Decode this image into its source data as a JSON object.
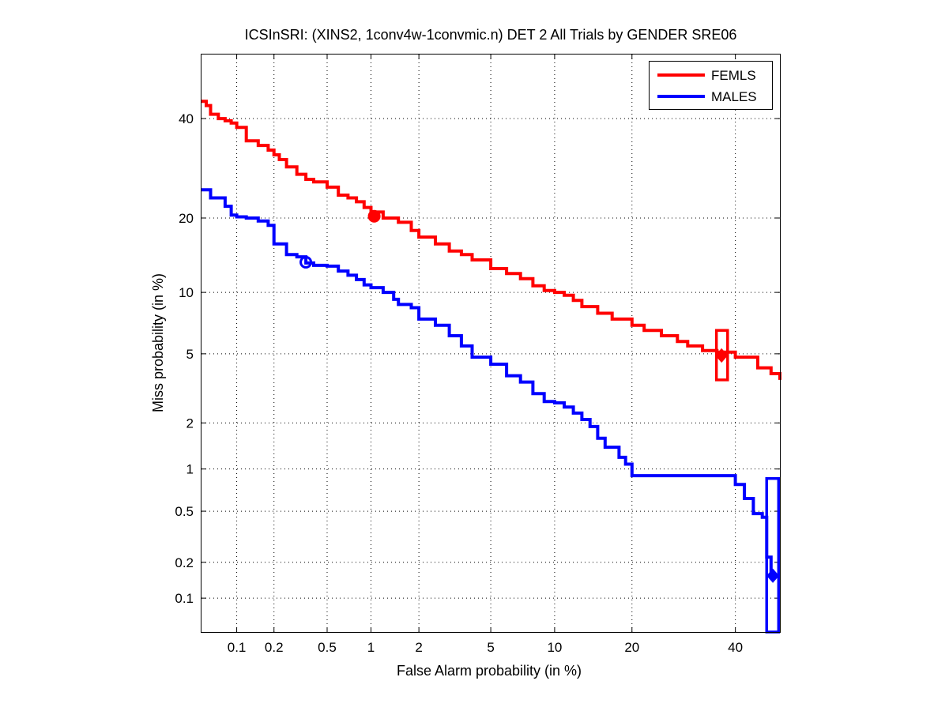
{
  "chart_data": {
    "type": "line",
    "title": "ICSInSRI: (XINS2, 1conv4w-1convmic.n) DET 2 All Trials by GENDER SRE06",
    "xlabel": "False Alarm probability (in %)",
    "ylabel": "Miss probability (in %)",
    "x_scale": "normal-deviate (probit)",
    "y_scale": "normal-deviate (probit)",
    "xlim": [
      0.05,
      50
    ],
    "ylim": [
      0.05,
      55
    ],
    "x_ticks": [
      0.1,
      0.2,
      0.5,
      1,
      2,
      5,
      10,
      20,
      40
    ],
    "x_tick_labels": [
      "0.1",
      "0.2",
      "0.5",
      "1",
      "2",
      "5",
      "10",
      "20",
      "40"
    ],
    "y_ticks": [
      0.1,
      0.2,
      0.5,
      1,
      2,
      5,
      10,
      20,
      40
    ],
    "y_tick_labels": [
      "0.1",
      "0.2",
      "0.5",
      "1",
      "2",
      "5",
      "10",
      "20",
      "40"
    ],
    "grid": true,
    "legend_position": "top-right",
    "series": [
      {
        "name": "FEMLS",
        "color": "#ff0000",
        "points": [
          [
            0.05,
            44
          ],
          [
            0.055,
            43
          ],
          [
            0.06,
            41
          ],
          [
            0.07,
            40
          ],
          [
            0.08,
            39.5
          ],
          [
            0.09,
            39
          ],
          [
            0.1,
            38
          ],
          [
            0.12,
            35
          ],
          [
            0.15,
            34
          ],
          [
            0.18,
            33
          ],
          [
            0.2,
            32
          ],
          [
            0.22,
            31
          ],
          [
            0.25,
            29.5
          ],
          [
            0.3,
            28
          ],
          [
            0.35,
            27
          ],
          [
            0.4,
            26.5
          ],
          [
            0.5,
            25.5
          ],
          [
            0.6,
            24
          ],
          [
            0.7,
            23.5
          ],
          [
            0.8,
            22.8
          ],
          [
            0.9,
            21.8
          ],
          [
            1,
            21
          ],
          [
            1.2,
            20
          ],
          [
            1.5,
            19.3
          ],
          [
            1.8,
            18
          ],
          [
            2,
            17
          ],
          [
            2.5,
            16
          ],
          [
            3,
            15
          ],
          [
            3.5,
            14.5
          ],
          [
            4,
            13.8
          ],
          [
            5,
            12.7
          ],
          [
            6,
            12.1
          ],
          [
            7,
            11.5
          ],
          [
            8,
            10.7
          ],
          [
            9,
            10.2
          ],
          [
            10,
            10
          ],
          [
            11,
            9.7
          ],
          [
            12,
            9.2
          ],
          [
            13,
            8.6
          ],
          [
            15,
            8
          ],
          [
            17,
            7.5
          ],
          [
            20,
            7
          ],
          [
            22,
            6.6
          ],
          [
            25,
            6.2
          ],
          [
            28,
            5.8
          ],
          [
            30,
            5.5
          ],
          [
            33,
            5.2
          ],
          [
            36,
            5.1
          ],
          [
            40,
            4.8
          ],
          [
            45,
            4.2
          ],
          [
            48,
            3.9
          ],
          [
            50,
            3.6
          ]
        ],
        "operating_point_circle": [
          1.05,
          20.3
        ],
        "operating_point_diamond": [
          37,
          4.9
        ],
        "confidence_box": {
          "x": [
            35.9,
            38.3
          ],
          "y": [
            3.6,
            6.6
          ]
        }
      },
      {
        "name": "MALES",
        "color": "#0000ff",
        "points": [
          [
            0.05,
            25
          ],
          [
            0.06,
            23.5
          ],
          [
            0.08,
            22
          ],
          [
            0.09,
            20.5
          ],
          [
            0.1,
            20.2
          ],
          [
            0.12,
            20
          ],
          [
            0.15,
            19.5
          ],
          [
            0.18,
            18.8
          ],
          [
            0.2,
            16
          ],
          [
            0.25,
            14.5
          ],
          [
            0.3,
            14.2
          ],
          [
            0.35,
            13.4
          ],
          [
            0.4,
            13.1
          ],
          [
            0.5,
            13
          ],
          [
            0.6,
            12.4
          ],
          [
            0.7,
            11.9
          ],
          [
            0.8,
            11.4
          ],
          [
            0.9,
            10.8
          ],
          [
            1,
            10.5
          ],
          [
            1.2,
            10
          ],
          [
            1.4,
            9.3
          ],
          [
            1.5,
            8.8
          ],
          [
            1.8,
            8.5
          ],
          [
            2,
            7.5
          ],
          [
            2.5,
            7
          ],
          [
            3,
            6.2
          ],
          [
            3.5,
            5.5
          ],
          [
            4,
            4.8
          ],
          [
            5,
            4.4
          ],
          [
            6,
            3.8
          ],
          [
            7,
            3.5
          ],
          [
            8,
            3
          ],
          [
            9,
            2.7
          ],
          [
            10,
            2.65
          ],
          [
            11,
            2.5
          ],
          [
            12,
            2.3
          ],
          [
            13,
            2.1
          ],
          [
            14,
            1.9
          ],
          [
            15,
            1.6
          ],
          [
            16,
            1.4
          ],
          [
            18,
            1.2
          ],
          [
            19,
            1.08
          ],
          [
            20,
            0.9
          ],
          [
            39,
            0.9
          ],
          [
            40,
            0.78
          ],
          [
            42,
            0.62
          ],
          [
            44,
            0.48
          ],
          [
            46,
            0.45
          ],
          [
            47,
            0.22
          ],
          [
            48,
            0.155
          ]
        ],
        "operating_point_circle": [
          0.35,
          13.5
        ],
        "operating_point_diamond": [
          48.4,
          0.155
        ],
        "confidence_box": {
          "x": [
            47,
            49.7
          ],
          "y": [
            0.05,
            0.86
          ]
        }
      }
    ]
  }
}
